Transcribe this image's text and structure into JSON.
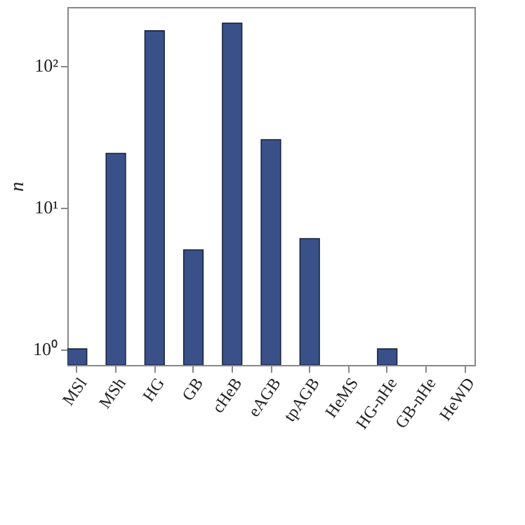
{
  "chart_data": {
    "type": "bar",
    "ylabel": "n",
    "categories": [
      "MSl",
      "MSh",
      "HG",
      "GB",
      "cHeB",
      "eAGB",
      "tpAGB",
      "HeMS",
      "HG-nHe",
      "GB-nHe",
      "HeWD"
    ],
    "values": [
      1,
      24,
      176,
      5,
      199,
      30,
      6,
      null,
      1,
      null,
      null
    ],
    "color": "#3a5088",
    "log": "y",
    "ylim": [
      0.77,
      259
    ],
    "yticks": [
      {
        "value": 1,
        "label": "10⁰"
      },
      {
        "value": 10,
        "label": "10¹"
      },
      {
        "value": 100,
        "label": "10²"
      }
    ],
    "grid": false
  }
}
